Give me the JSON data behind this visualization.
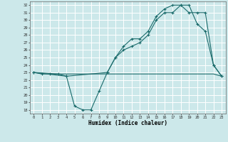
{
  "xlabel": "Humidex (Indice chaleur)",
  "bg_color": "#cce8ea",
  "grid_color": "#ffffff",
  "line_color": "#1a6b6b",
  "xlim": [
    -0.5,
    23.5
  ],
  "ylim": [
    17.5,
    32.5
  ],
  "xticks": [
    0,
    1,
    2,
    3,
    4,
    5,
    6,
    7,
    8,
    9,
    10,
    11,
    12,
    13,
    14,
    15,
    16,
    17,
    18,
    19,
    20,
    21,
    22,
    23
  ],
  "yticks": [
    18,
    19,
    20,
    21,
    22,
    23,
    24,
    25,
    26,
    27,
    28,
    29,
    30,
    31,
    32
  ],
  "curve1_x": [
    0,
    1,
    2,
    3,
    4,
    5,
    6,
    7,
    8,
    9,
    10,
    11,
    12,
    13,
    14,
    15,
    16,
    17,
    18,
    19,
    20,
    21,
    22,
    23
  ],
  "curve1_y": [
    23.0,
    22.8,
    22.8,
    22.8,
    22.5,
    18.5,
    18.0,
    18.0,
    20.5,
    23.0,
    25.0,
    26.0,
    26.5,
    27.0,
    28.0,
    30.0,
    31.0,
    31.0,
    32.0,
    32.0,
    29.5,
    28.5,
    24.0,
    22.5
  ],
  "curve2_x": [
    0,
    3,
    22,
    23
  ],
  "curve2_y": [
    23.0,
    22.8,
    22.8,
    22.5
  ],
  "curve3_x": [
    0,
    4,
    9,
    10,
    11,
    12,
    13,
    14,
    15,
    16,
    17,
    18,
    19,
    20,
    21,
    22,
    23
  ],
  "curve3_y": [
    23.0,
    22.5,
    23.0,
    25.0,
    26.5,
    27.5,
    27.5,
    28.5,
    30.5,
    31.5,
    32.0,
    32.0,
    31.0,
    31.0,
    31.0,
    24.0,
    22.5
  ]
}
